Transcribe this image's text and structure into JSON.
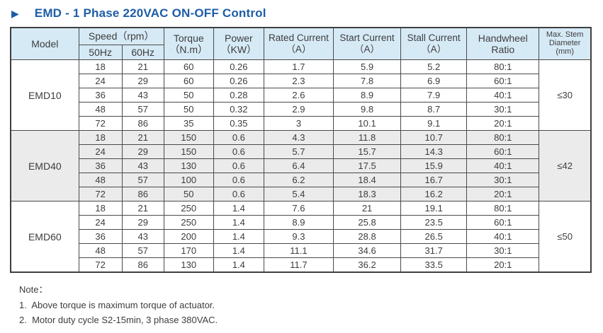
{
  "page": {
    "title": "EMD - 1 Phase 220VAC ON-OFF Control"
  },
  "colors": {
    "title_blue": "#1d5da7",
    "header_bg": "#d6eaf6",
    "shaded_band": "#ebebeb",
    "border": "#4a4a4a"
  },
  "table": {
    "headers": {
      "model": "Model",
      "speed_group": "Speed（rpm）",
      "speed_50": "50Hz",
      "speed_60": "60Hz",
      "torque_l1": "Torque",
      "torque_l2": "（N.m）",
      "power_l1": "Power",
      "power_l2": "（KW）",
      "rated_l1": "Rated Current",
      "rated_l2": "（A）",
      "start_l1": "Start Current",
      "start_l2": "（A）",
      "stall_l1": "Stall Current",
      "stall_l2": "（A）",
      "handwheel_l1": "Handwheel",
      "handwheel_l2": "Ratio",
      "stem_l1": "Max. Stem",
      "stem_l2": "Diameter",
      "stem_l3": "(mm)"
    },
    "column_keys": [
      "speed-50hz",
      "speed-60hz",
      "torque",
      "power",
      "rated-current",
      "start-current",
      "stall-current",
      "handwheel-ratio"
    ],
    "sections": [
      {
        "model": "EMD10",
        "max_stem_diameter": "≤30",
        "shaded": false,
        "rows": [
          [
            "18",
            "21",
            "60",
            "0.26",
            "1.7",
            "5.9",
            "5.2",
            "80:1"
          ],
          [
            "24",
            "29",
            "60",
            "0.26",
            "2.3",
            "7.8",
            "6.9",
            "60:1"
          ],
          [
            "36",
            "43",
            "50",
            "0.28",
            "2.6",
            "8.9",
            "7.9",
            "40:1"
          ],
          [
            "48",
            "57",
            "50",
            "0.32",
            "2.9",
            "9.8",
            "8.7",
            "30:1"
          ],
          [
            "72",
            "86",
            "35",
            "0.35",
            "3",
            "10.1",
            "9.1",
            "20:1"
          ]
        ]
      },
      {
        "model": "EMD40",
        "max_stem_diameter": "≤42",
        "shaded": true,
        "rows": [
          [
            "18",
            "21",
            "150",
            "0.6",
            "4.3",
            "11.8",
            "10.7",
            "80:1"
          ],
          [
            "24",
            "29",
            "150",
            "0.6",
            "5.7",
            "15.7",
            "14.3",
            "60:1"
          ],
          [
            "36",
            "43",
            "130",
            "0.6",
            "6.4",
            "17.5",
            "15.9",
            "40:1"
          ],
          [
            "48",
            "57",
            "100",
            "0.6",
            "6.2",
            "18.4",
            "16.7",
            "30:1"
          ],
          [
            "72",
            "86",
            "50",
            "0.6",
            "5.4",
            "18.3",
            "16.2",
            "20:1"
          ]
        ]
      },
      {
        "model": "EMD60",
        "max_stem_diameter": "≤50",
        "shaded": false,
        "rows": [
          [
            "18",
            "21",
            "250",
            "1.4",
            "7.6",
            "21",
            "19.1",
            "80:1"
          ],
          [
            "24",
            "29",
            "250",
            "1.4",
            "8.9",
            "25.8",
            "23.5",
            "60:1"
          ],
          [
            "36",
            "43",
            "200",
            "1.4",
            "9.3",
            "28.8",
            "26.5",
            "40:1"
          ],
          [
            "48",
            "57",
            "170",
            "1.4",
            "11.1",
            "34.6",
            "31.7",
            "30:1"
          ],
          [
            "72",
            "86",
            "130",
            "1.4",
            "11.7",
            "36.2",
            "33.5",
            "20:1"
          ]
        ]
      }
    ]
  },
  "notes": {
    "label": "Note：",
    "items": [
      "1.  Above torque is maximum torque of actuator.",
      "2.  Motor duty cycle S2-15min, 3 phase 380VAC."
    ]
  }
}
